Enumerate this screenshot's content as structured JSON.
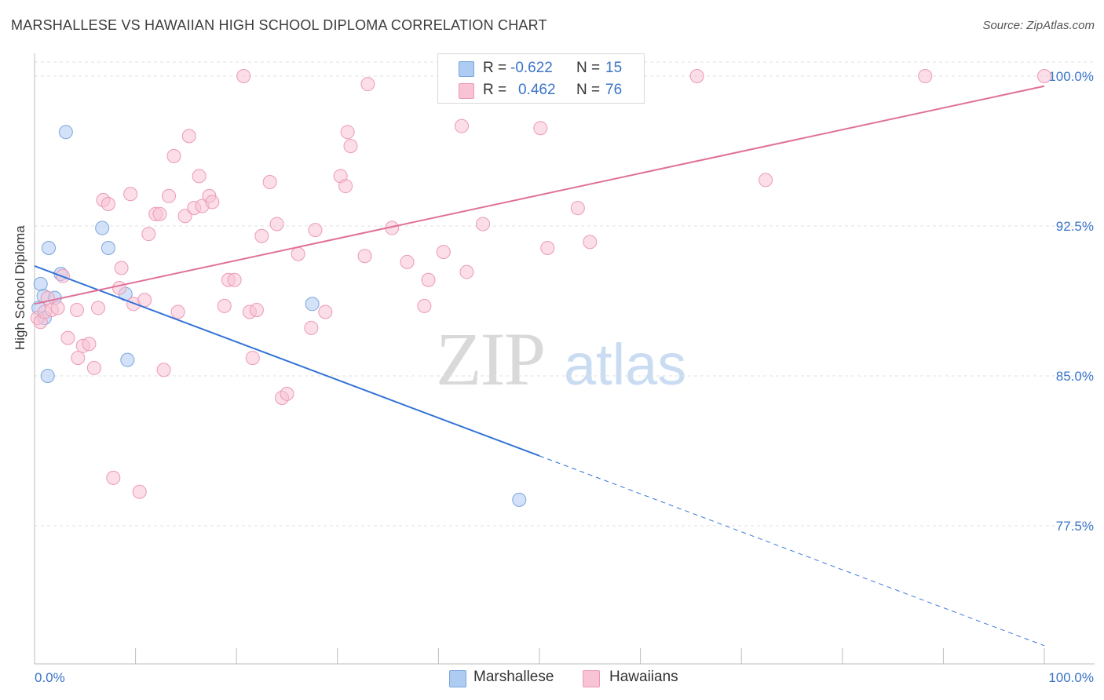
{
  "header": {
    "title": "MARSHALLESE VS HAWAIIAN HIGH SCHOOL DIPLOMA CORRELATION CHART",
    "source": "Source: ZipAtlas.com"
  },
  "legend": {
    "rows": [
      {
        "r_label": "R =",
        "r_value": "-0.622",
        "n_label": "N =",
        "n_value": "15",
        "color": "#aecbf2",
        "border": "#7aa6de"
      },
      {
        "r_label": "R =",
        "r_value": "0.462",
        "n_label": "N =",
        "n_value": "76",
        "color": "#f8c3d4",
        "border": "#ec9ab5"
      }
    ]
  },
  "bottom_legend": {
    "items": [
      {
        "label": "Marshallese",
        "color": "#aecbf2",
        "border": "#7aa6de"
      },
      {
        "label": "Hawaiians",
        "color": "#f8c3d4",
        "border": "#ec9ab5"
      }
    ]
  },
  "watermark": {
    "zip": "ZIP",
    "atlas": "atlas"
  },
  "chart_data": {
    "type": "scatter",
    "ylabel": "High School Diploma",
    "xlim": [
      0,
      100
    ],
    "ylim": [
      71.5,
      100.8
    ],
    "x_tick_labels": [
      "0.0%",
      "100.0%"
    ],
    "y_ticks": [
      77.5,
      85.0,
      92.5,
      100.0
    ],
    "y_tick_labels": [
      "77.5%",
      "85.0%",
      "92.5%",
      "100.0%"
    ],
    "grid": true,
    "series": [
      {
        "name": "Marshallese",
        "color": "#aecbf2",
        "stroke": "#7aa6de",
        "line_color": "#3373d6",
        "trend": {
          "x0": 0,
          "y0": 90.5,
          "x1": 100,
          "y1": 71.5,
          "solid_until": 50
        },
        "points": [
          [
            0.4,
            88.4
          ],
          [
            0.6,
            89.6
          ],
          [
            0.9,
            89.0
          ],
          [
            1.0,
            87.9
          ],
          [
            1.3,
            85.0
          ],
          [
            1.4,
            91.4
          ],
          [
            2.0,
            88.9
          ],
          [
            2.6,
            90.1
          ],
          [
            3.1,
            97.2
          ],
          [
            6.7,
            92.4
          ],
          [
            7.3,
            91.4
          ],
          [
            9.0,
            89.1
          ],
          [
            9.2,
            85.8
          ],
          [
            27.5,
            88.6
          ],
          [
            48.0,
            78.8
          ]
        ]
      },
      {
        "name": "Hawaiians",
        "color": "#f8c3d4",
        "stroke": "#ec9ab5",
        "line_color": "#e0709a",
        "trend": {
          "x0": 0,
          "y0": 88.6,
          "x1": 100,
          "y1": 99.5,
          "solid_until": 100
        },
        "points": [
          [
            0.3,
            87.9
          ],
          [
            0.6,
            87.7
          ],
          [
            1.0,
            88.2
          ],
          [
            1.3,
            88.9
          ],
          [
            1.7,
            88.3
          ],
          [
            2.3,
            88.4
          ],
          [
            2.8,
            90.0
          ],
          [
            3.3,
            86.9
          ],
          [
            4.2,
            88.3
          ],
          [
            4.3,
            85.9
          ],
          [
            4.8,
            86.5
          ],
          [
            5.4,
            86.6
          ],
          [
            5.9,
            85.4
          ],
          [
            6.3,
            88.4
          ],
          [
            6.8,
            93.8
          ],
          [
            7.3,
            93.6
          ],
          [
            7.8,
            79.9
          ],
          [
            8.4,
            89.4
          ],
          [
            8.6,
            90.4
          ],
          [
            9.5,
            94.1
          ],
          [
            9.8,
            88.6
          ],
          [
            10.4,
            79.2
          ],
          [
            10.9,
            88.8
          ],
          [
            11.3,
            92.1
          ],
          [
            12.0,
            93.1
          ],
          [
            12.4,
            93.1
          ],
          [
            12.8,
            85.3
          ],
          [
            13.3,
            94.0
          ],
          [
            13.8,
            96.0
          ],
          [
            14.2,
            88.2
          ],
          [
            14.9,
            93.0
          ],
          [
            15.3,
            97.0
          ],
          [
            15.8,
            93.4
          ],
          [
            16.3,
            95.0
          ],
          [
            16.6,
            93.5
          ],
          [
            17.3,
            94.0
          ],
          [
            17.6,
            93.7
          ],
          [
            18.8,
            88.5
          ],
          [
            19.2,
            89.8
          ],
          [
            19.8,
            89.8
          ],
          [
            20.7,
            100.0
          ],
          [
            21.3,
            88.2
          ],
          [
            21.6,
            85.9
          ],
          [
            22.0,
            88.3
          ],
          [
            22.5,
            92.0
          ],
          [
            23.3,
            94.7
          ],
          [
            24.0,
            92.6
          ],
          [
            24.5,
            83.9
          ],
          [
            25.0,
            84.1
          ],
          [
            26.1,
            91.1
          ],
          [
            27.4,
            87.4
          ],
          [
            27.8,
            92.3
          ],
          [
            28.8,
            88.2
          ],
          [
            30.3,
            95.0
          ],
          [
            30.8,
            94.5
          ],
          [
            31.0,
            97.2
          ],
          [
            31.3,
            96.5
          ],
          [
            32.7,
            91.0
          ],
          [
            33.0,
            99.6
          ],
          [
            35.4,
            92.4
          ],
          [
            36.9,
            90.7
          ],
          [
            38.6,
            88.5
          ],
          [
            39.0,
            89.8
          ],
          [
            40.5,
            91.2
          ],
          [
            42.3,
            97.5
          ],
          [
            42.8,
            90.2
          ],
          [
            44.4,
            92.6
          ],
          [
            50.1,
            97.4
          ],
          [
            50.8,
            91.4
          ],
          [
            53.8,
            93.4
          ],
          [
            55.0,
            91.7
          ],
          [
            65.6,
            100.0
          ],
          [
            72.4,
            94.8
          ],
          [
            88.2,
            100.0
          ],
          [
            100.0,
            100.0
          ],
          [
            50.0,
            100.0
          ]
        ]
      }
    ]
  }
}
